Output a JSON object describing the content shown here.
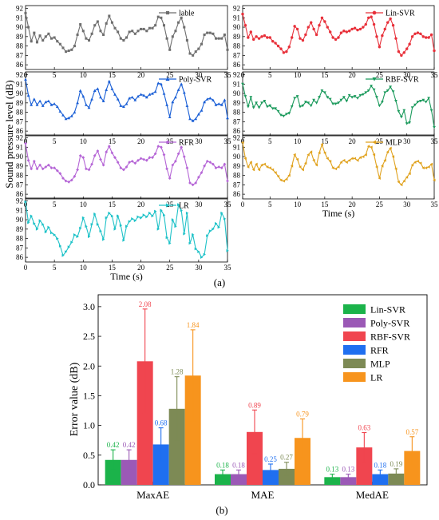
{
  "panel_a": {
    "caption": "(a)",
    "ylabel": "Sound pressure level (dB)",
    "xlabel": "Time (s)",
    "x_ticks": [
      "0",
      "5",
      "10",
      "15",
      "20",
      "25",
      "30",
      "35"
    ],
    "y_ticks": [
      "86",
      "87",
      "88",
      "89",
      "90",
      "91",
      "92"
    ]
  },
  "panel_b": {
    "caption": "(b)",
    "ylabel": "Error value (dB)"
  },
  "chart_data": [
    {
      "type": "line",
      "xlim": [
        0,
        35
      ],
      "ylim": [
        85.5,
        92.3
      ],
      "x": [
        0,
        0.5,
        1,
        1.5,
        2,
        2.5,
        3,
        3.5,
        4,
        4.5,
        5,
        5.5,
        6,
        6.5,
        7,
        7.5,
        8,
        8.5,
        9,
        9.5,
        10,
        10.5,
        11,
        11.5,
        12,
        12.5,
        13,
        13.5,
        14,
        14.5,
        15,
        15.5,
        16,
        16.5,
        17,
        17.5,
        18,
        18.5,
        19,
        19.5,
        20,
        20.5,
        21,
        21.5,
        22,
        22.5,
        23,
        23.5,
        24,
        24.5,
        25,
        25.5,
        26,
        26.5,
        27,
        27.5,
        28,
        28.5,
        29,
        29.5,
        30,
        30.5,
        31,
        31.5,
        32,
        32.5,
        33,
        33.5,
        34,
        34.5,
        35
      ],
      "series": [
        {
          "name": "lable",
          "color": "#6e6e6e",
          "marker": "square",
          "legend_pos": "top-right",
          "values": [
            91.5,
            90.0,
            88.5,
            89.4,
            88.4,
            89.1,
            88.6,
            89.0,
            89.3,
            88.8,
            88.9,
            88.5,
            88.2,
            87.8,
            87.4,
            87.5,
            87.6,
            88.0,
            89.2,
            90.3,
            89.6,
            88.8,
            88.6,
            89.3,
            90.2,
            90.6,
            89.6,
            89.2,
            90.4,
            91.2,
            90.5,
            89.9,
            89.5,
            88.8,
            88.6,
            88.9,
            89.5,
            89.6,
            89.3,
            89.6,
            89.8,
            89.8,
            89.6,
            89.9,
            89.9,
            90.2,
            91.1,
            91.0,
            90.2,
            88.8,
            87.6,
            89.0,
            89.6,
            90.5,
            91.0,
            90.0,
            88.6,
            87.2,
            87.0,
            87.4,
            87.7,
            88.2,
            89.2,
            89.4,
            89.4,
            89.3,
            88.8,
            88.8,
            88.8,
            89.2,
            87.6
          ]
        },
        {
          "name": "Lin-SVR",
          "color": "#e8303a",
          "marker": "circle",
          "legend_pos": "top-right",
          "values": [
            91.4,
            90.2,
            88.9,
            89.5,
            88.7,
            89.0,
            88.8,
            89.0,
            89.1,
            88.9,
            88.9,
            88.5,
            88.3,
            88.0,
            87.7,
            87.3,
            87.4,
            87.9,
            88.9,
            90.1,
            89.8,
            88.8,
            88.6,
            89.2,
            90.0,
            90.5,
            89.8,
            89.2,
            90.2,
            91.0,
            90.6,
            90.0,
            89.5,
            88.9,
            88.7,
            88.9,
            89.4,
            89.6,
            89.5,
            89.6,
            89.8,
            89.9,
            89.7,
            89.8,
            90.0,
            90.3,
            91.0,
            91.1,
            90.3,
            89.0,
            87.9,
            89.1,
            89.8,
            90.5,
            90.9,
            90.2,
            88.8,
            87.4,
            87.0,
            87.3,
            87.7,
            88.2,
            89.0,
            89.3,
            89.4,
            89.3,
            89.0,
            88.9,
            88.9,
            89.2,
            87.5
          ]
        },
        {
          "name": "Poly-SVR",
          "color": "#1a5fd6",
          "marker": "triangle-up",
          "legend_pos": "top-right",
          "values": [
            91.5,
            89.8,
            88.8,
            89.4,
            88.8,
            89.2,
            88.7,
            89.1,
            89.2,
            88.8,
            88.9,
            88.6,
            88.1,
            87.7,
            87.3,
            87.4,
            87.6,
            88.0,
            89.0,
            90.3,
            89.7,
            88.8,
            88.5,
            89.4,
            90.3,
            90.5,
            89.6,
            89.2,
            90.4,
            91.3,
            90.5,
            89.9,
            89.4,
            88.7,
            88.6,
            88.9,
            89.5,
            89.6,
            89.3,
            89.7,
            89.9,
            89.8,
            89.6,
            89.9,
            90.0,
            90.2,
            91.1,
            91.0,
            90.0,
            88.8,
            87.5,
            89.1,
            89.6,
            90.4,
            91.0,
            90.1,
            88.7,
            87.3,
            87.1,
            87.3,
            87.8,
            88.2,
            89.1,
            89.4,
            89.5,
            89.3,
            88.8,
            88.9,
            88.8,
            89.3,
            87.4
          ]
        },
        {
          "name": "RBF-SVR",
          "color": "#1b9a5c",
          "marker": "triangle-down",
          "legend_pos": "top-right",
          "values": [
            91.0,
            89.7,
            88.6,
            89.6,
            88.5,
            89.0,
            88.5,
            89.0,
            89.2,
            88.6,
            88.7,
            88.4,
            88.4,
            88.1,
            87.7,
            87.6,
            87.8,
            87.9,
            88.6,
            89.5,
            89.7,
            88.6,
            88.7,
            89.1,
            89.0,
            88.7,
            89.3,
            89.0,
            89.6,
            90.3,
            90.1,
            89.6,
            89.4,
            88.9,
            88.9,
            89.0,
            89.3,
            89.6,
            89.2,
            89.8,
            89.6,
            89.7,
            89.5,
            89.8,
            89.9,
            90.1,
            90.3,
            90.8,
            90.4,
            89.6,
            88.7,
            89.1,
            90.1,
            90.3,
            90.7,
            90.2,
            89.2,
            88.1,
            87.5,
            88.2,
            86.8,
            86.9,
            88.5,
            88.8,
            89.1,
            89.2,
            89.3,
            89.1,
            89.5,
            88.2,
            86.4
          ]
        },
        {
          "name": "RFR",
          "color": "#b565d6",
          "marker": "diamond",
          "legend_pos": "top-right",
          "values": [
            91.4,
            89.6,
            88.7,
            89.5,
            88.7,
            89.1,
            88.7,
            88.9,
            89.1,
            88.8,
            88.8,
            88.5,
            88.2,
            87.7,
            87.4,
            87.3,
            87.5,
            87.9,
            88.6,
            90.1,
            89.9,
            88.7,
            88.6,
            89.2,
            90.1,
            90.6,
            89.7,
            89.1,
            90.5,
            91.1,
            90.4,
            89.9,
            89.4,
            88.8,
            88.6,
            88.9,
            89.4,
            89.5,
            89.3,
            89.6,
            89.8,
            89.7,
            89.6,
            89.9,
            89.9,
            90.3,
            91.1,
            91.0,
            90.2,
            88.7,
            87.7,
            89.1,
            89.5,
            90.3,
            91.0,
            90.0,
            88.8,
            87.2,
            87.0,
            87.2,
            87.8,
            88.3,
            89.0,
            89.5,
            89.4,
            89.2,
            88.8,
            88.9,
            88.8,
            89.2,
            87.4
          ]
        },
        {
          "name": "MLP",
          "color": "#e0a21e",
          "marker": "triangle-left",
          "legend_pos": "top-right",
          "values": [
            91.5,
            89.8,
            88.9,
            89.4,
            88.6,
            89.2,
            88.6,
            89.1,
            89.2,
            88.9,
            88.8,
            88.6,
            88.3,
            87.9,
            87.5,
            87.4,
            87.6,
            88.0,
            89.0,
            90.2,
            89.7,
            88.9,
            88.6,
            89.3,
            90.2,
            90.5,
            89.6,
            89.1,
            90.4,
            91.3,
            90.4,
            89.8,
            89.5,
            88.8,
            88.7,
            88.9,
            89.4,
            89.6,
            89.4,
            89.6,
            89.8,
            89.8,
            89.6,
            89.9,
            90.0,
            90.2,
            91.1,
            91.0,
            90.2,
            88.9,
            87.7,
            89.0,
            89.6,
            90.5,
            90.9,
            90.0,
            88.7,
            87.3,
            87.0,
            87.4,
            87.8,
            88.2,
            89.1,
            89.4,
            89.5,
            89.3,
            88.8,
            88.8,
            88.9,
            89.2,
            87.5
          ]
        },
        {
          "name": "LR",
          "color": "#1ec2c8",
          "marker": "triangle-right",
          "legend_pos": "top-right",
          "values": [
            91.9,
            89.7,
            90.4,
            89.6,
            89.0,
            89.9,
            89.5,
            88.7,
            89.2,
            88.6,
            88.4,
            88.0,
            87.2,
            86.2,
            86.6,
            87.1,
            87.6,
            88.4,
            88.2,
            89.1,
            90.2,
            89.3,
            88.2,
            89.5,
            90.6,
            89.5,
            88.8,
            87.9,
            90.2,
            90.7,
            90.4,
            89.0,
            90.4,
            89.4,
            87.8,
            89.3,
            89.8,
            90.1,
            89.9,
            90.3,
            90.2,
            90.5,
            90.3,
            90.7,
            90.4,
            90.9,
            89.0,
            91.0,
            90.5,
            88.1,
            87.5,
            90.0,
            89.3,
            91.6,
            91.0,
            88.5,
            90.7,
            87.5,
            88.4,
            86.9,
            86.6,
            86.0,
            86.3,
            88.3,
            88.8,
            89.0,
            89.6,
            89.2,
            90.7,
            90.1,
            86.7
          ]
        }
      ]
    },
    {
      "type": "bar",
      "title": "",
      "xlabel": "",
      "ylabel": "Error value (dB)",
      "ylim": [
        0,
        3.2
      ],
      "y_ticks": [
        "0.0",
        "0.5",
        "1.0",
        "1.5",
        "2.0",
        "2.5",
        "3.0"
      ],
      "categories": [
        "MaxAE",
        "MAE",
        "MedAE"
      ],
      "legend_position": "top-right",
      "series": [
        {
          "name": "Lin-SVR",
          "color": "#1bb34a",
          "values": [
            0.42,
            0.18,
            0.13
          ],
          "value_labels": [
            "0.42",
            "0.18",
            "0.13"
          ],
          "err": [
            0.17,
            0.07,
            0.05
          ]
        },
        {
          "name": "Poly-SVR",
          "color": "#9b59b6",
          "values": [
            0.42,
            0.18,
            0.13
          ],
          "value_labels": [
            "0.42",
            "0.18",
            "0.13"
          ],
          "err": [
            0.17,
            0.07,
            0.05
          ]
        },
        {
          "name": "RBF-SVR",
          "color": "#f0454f",
          "values": [
            2.08,
            0.89,
            0.63
          ],
          "value_labels": [
            "2.08",
            "0.89",
            "0.63"
          ],
          "err": [
            0.88,
            0.37,
            0.25
          ]
        },
        {
          "name": "RFR",
          "color": "#1f6ff0",
          "values": [
            0.68,
            0.25,
            0.18
          ],
          "value_labels": [
            "0.68",
            "0.25",
            "0.18"
          ],
          "err": [
            0.28,
            0.1,
            0.07
          ]
        },
        {
          "name": "MLP",
          "color": "#7d8a55",
          "values": [
            1.28,
            0.27,
            0.19
          ],
          "value_labels": [
            "1.28",
            "0.27",
            "0.19"
          ],
          "err": [
            0.54,
            0.11,
            0.08
          ]
        },
        {
          "name": "LR",
          "color": "#f7941d",
          "values": [
            1.84,
            0.79,
            0.57
          ],
          "value_labels": [
            "1.84",
            "0.79",
            "0.57"
          ],
          "err": [
            0.77,
            0.32,
            0.24
          ]
        }
      ]
    }
  ]
}
